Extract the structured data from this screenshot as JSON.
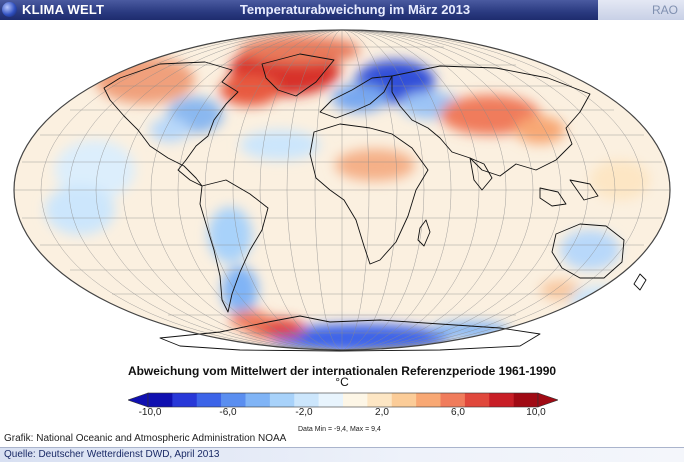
{
  "header": {
    "brand": "KLIMA WELT",
    "title": "Temperaturabweichung im März 2013",
    "corner_label": "RAO"
  },
  "legend": {
    "title": "Abweichung vom Mittelwert der internationalen Referenzperiode 1961-1990",
    "unit": "°C",
    "ticks": [
      "-10,0",
      "-6,0",
      "-2,0",
      "2,0",
      "6,0",
      "10,0"
    ],
    "range_text": "Data Min = -9,4, Max = 9,4",
    "colors": [
      "#1010b0",
      "#2838d8",
      "#3c64e8",
      "#5a8ef0",
      "#80b4f6",
      "#a8d2fa",
      "#cce6fc",
      "#e8f4fd",
      "#fdf6e6",
      "#fde6c4",
      "#fbcc98",
      "#f8a874",
      "#f07c5c",
      "#e0483c",
      "#c81e26",
      "#a00a14"
    ]
  },
  "credit": "Grafik:  National Oceanic and Atmospheric Administration NOAA",
  "footer": "Quelle: Deutscher Wetterdienst DWD, April 2013"
}
